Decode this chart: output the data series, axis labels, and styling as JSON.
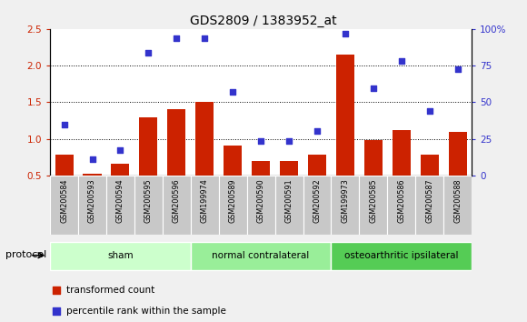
{
  "title": "GDS2809 / 1383952_at",
  "samples": [
    "GSM200584",
    "GSM200593",
    "GSM200594",
    "GSM200595",
    "GSM200596",
    "GSM199974",
    "GSM200589",
    "GSM200590",
    "GSM200591",
    "GSM200592",
    "GSM199973",
    "GSM200585",
    "GSM200586",
    "GSM200587",
    "GSM200588"
  ],
  "bar_values": [
    0.78,
    0.52,
    0.66,
    1.29,
    1.41,
    1.51,
    0.91,
    0.7,
    0.7,
    0.78,
    2.15,
    0.98,
    1.12,
    0.79,
    1.1
  ],
  "dot_values_left_scale": [
    1.19,
    0.72,
    0.85,
    2.17,
    2.37,
    2.37,
    1.64,
    0.97,
    0.97,
    1.11,
    2.43,
    1.69,
    2.06,
    1.38,
    1.95
  ],
  "bar_color": "#cc2200",
  "dot_color": "#3333cc",
  "ylim_left": [
    0.5,
    2.5
  ],
  "yticks_left": [
    0.5,
    1.0,
    1.5,
    2.0,
    2.5
  ],
  "ylim_right": [
    0,
    100
  ],
  "yticks_right": [
    0,
    25,
    50,
    75,
    100
  ],
  "yticklabels_right": [
    "0",
    "25",
    "50",
    "75",
    "100%"
  ],
  "grid_lines": [
    1.0,
    1.5,
    2.0
  ],
  "groups": [
    {
      "label": "sham",
      "start": 0,
      "end": 5,
      "color": "#ccffcc"
    },
    {
      "label": "normal contralateral",
      "start": 5,
      "end": 10,
      "color": "#99ee99"
    },
    {
      "label": "osteoarthritic ipsilateral",
      "start": 10,
      "end": 15,
      "color": "#55cc55"
    }
  ],
  "protocol_label": "protocol",
  "legend_bar_label": "transformed count",
  "legend_dot_label": "percentile rank within the sample",
  "fig_bg": "#f0f0f0",
  "plot_bg": "#ffffff",
  "label_bg": "#c8c8c8"
}
